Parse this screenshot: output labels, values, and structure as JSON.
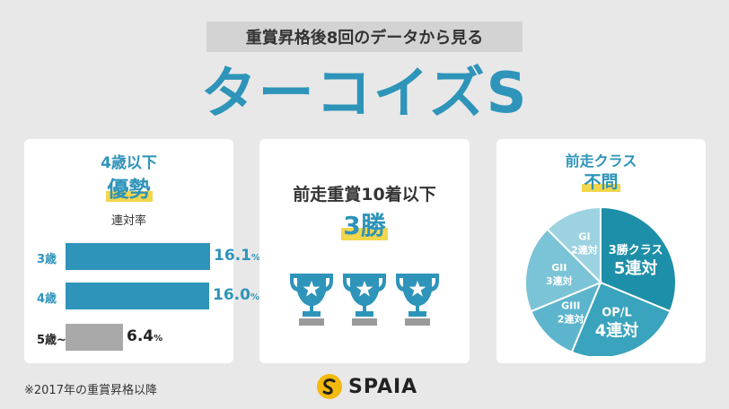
{
  "header": {
    "subtitle": "重賞昇格後8回のデータから見る",
    "title": "ターコイズS"
  },
  "card_age": {
    "heading_line1": "4歳以下",
    "heading_line2": "優勢",
    "metric_label": "連対率",
    "bars": [
      {
        "label": "3歳",
        "value_text": "16.1",
        "unit": "%"
      },
      {
        "label": "4歳",
        "value_text": "16.0",
        "unit": "%"
      },
      {
        "label": "5歳~",
        "value_text": "6.4",
        "unit": "%"
      }
    ]
  },
  "card_prev_race": {
    "heading_line1": "前走重賞10着以下",
    "heading_line2": "3勝",
    "trophy_icon": "trophy-star-icon",
    "trophy_count": 3
  },
  "card_class": {
    "heading_line1": "前走クラス",
    "heading_line2": "不問",
    "slices": [
      {
        "name": "3勝クラス",
        "value_text": "5連対"
      },
      {
        "name": "OP/L",
        "value_text": "4連対"
      },
      {
        "name": "GIII",
        "value_text": "2連対"
      },
      {
        "name": "GII",
        "value_text": "3連対"
      },
      {
        "name": "GI",
        "value_text": "2連対"
      }
    ]
  },
  "footnote": "※2017年の重賞昇格以降",
  "brand": {
    "name": "SPAIA",
    "icon": "spaia-logo-icon"
  },
  "colors": {
    "accent": "#2e94b9",
    "highlight": "#f2d64b",
    "gray_bar": "#a9a9a9",
    "trophy": "#2e94b9",
    "trophy_star": "#ffffff",
    "trophy_base": "#9a9a9a",
    "pie_3win": "#1e8fa8",
    "pie_op": "#3aa3bd",
    "pie_g3": "#5cb5cc",
    "pie_g2": "#7bc3d6",
    "pie_g1": "#9dd3e1"
  },
  "chart_data": [
    {
      "type": "bar",
      "orientation": "horizontal",
      "title": "連対率",
      "categories": [
        "3歳",
        "4歳",
        "5歳~"
      ],
      "values": [
        16.1,
        16.0,
        6.4
      ],
      "unit": "%"
    },
    {
      "type": "pie",
      "categories": [
        "3勝クラス",
        "OP/L",
        "GIII",
        "GII",
        "GI"
      ],
      "values": [
        5,
        4,
        2,
        3,
        2
      ],
      "unit": "連対"
    }
  ]
}
